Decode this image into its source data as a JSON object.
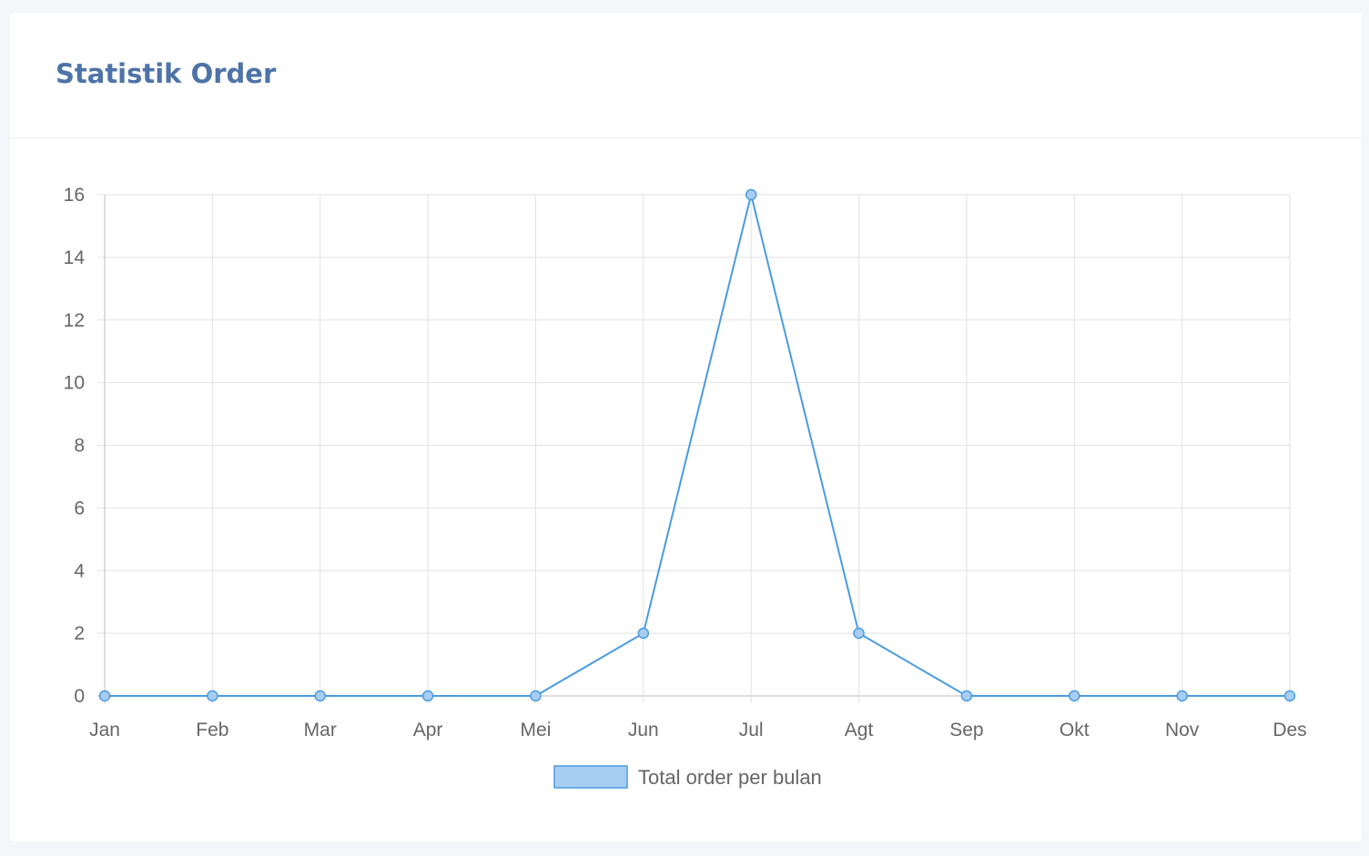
{
  "card": {
    "title": "Statistik Order"
  },
  "chart_data": {
    "type": "line",
    "categories": [
      "Jan",
      "Feb",
      "Mar",
      "Apr",
      "Mei",
      "Jun",
      "Jul",
      "Agt",
      "Sep",
      "Okt",
      "Nov",
      "Des"
    ],
    "series": [
      {
        "name": "Total order per bulan",
        "values": [
          0,
          0,
          0,
          0,
          0,
          2,
          16,
          2,
          0,
          0,
          0,
          0
        ],
        "color": "#4a9ce0",
        "fill": "#a8cdf3"
      }
    ],
    "ylim": [
      0,
      16
    ],
    "yticks": [
      0,
      2,
      4,
      6,
      8,
      10,
      12,
      14,
      16
    ],
    "grid": true,
    "legend": "bottom"
  }
}
